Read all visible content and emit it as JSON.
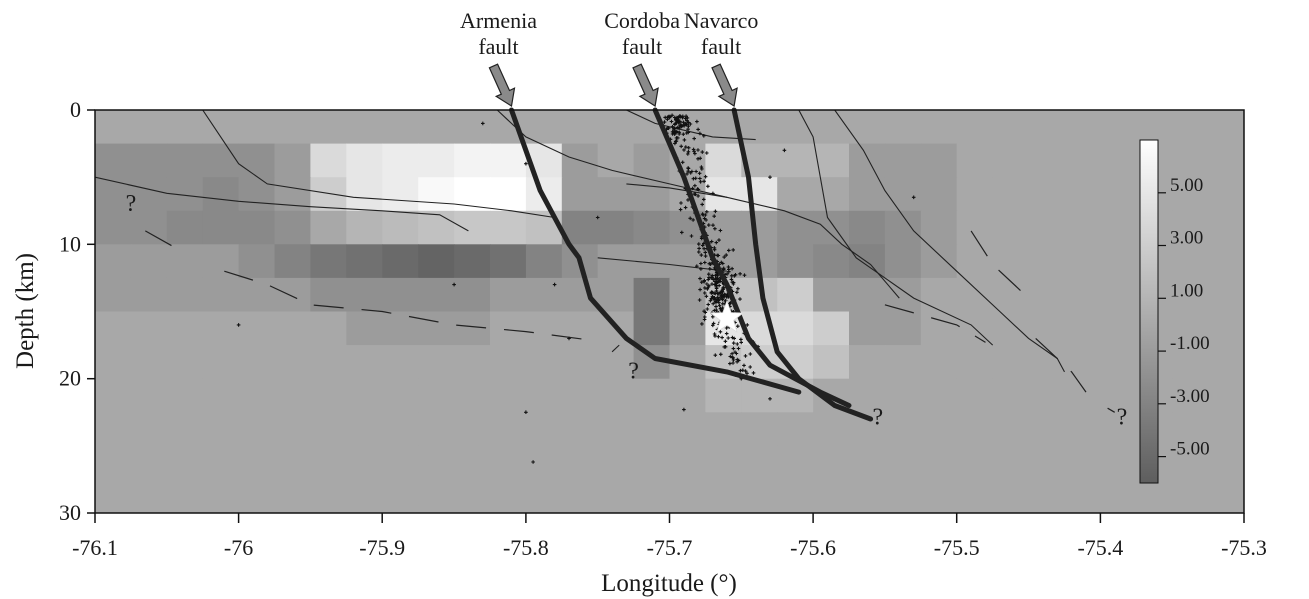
{
  "chart_data": {
    "type": "heatmap",
    "xlabel": "Longitude (°)",
    "ylabel": "Depth (km)",
    "xlim": [
      -76.1,
      -75.3
    ],
    "ylim": [
      0,
      30
    ],
    "x_ticks": [
      -76.1,
      -76,
      -75.9,
      -75.8,
      -75.7,
      -75.6,
      -75.5,
      -75.4,
      -75.3
    ],
    "x_tick_labels": [
      "-76.1",
      "-76",
      "-75.9",
      "-75.8",
      "-75.7",
      "-75.6",
      "-75.5",
      "-75.4",
      "-75.3"
    ],
    "y_ticks": [
      0,
      10,
      20,
      30
    ],
    "y_tick_labels": [
      "0",
      "10",
      "20",
      "30"
    ],
    "colorbar": {
      "min": -6,
      "max": 7,
      "tick_values": [
        5,
        3,
        1,
        -1,
        -3,
        -5
      ],
      "tick_labels": [
        "5.00",
        "3.00",
        "1.00",
        "-1.00",
        "-3.00",
        "-5.00"
      ],
      "color_low": "#5e5e5e",
      "color_high": "#ffffff"
    },
    "grid": {
      "x0": -76.1,
      "dx": 0.025,
      "z0": 0,
      "dz": 2.5,
      "rows": [
        [
          0,
          0,
          0,
          0,
          0,
          0,
          0,
          0,
          0,
          0,
          0,
          0,
          0,
          0,
          0,
          0,
          0,
          0,
          0,
          0,
          0,
          0,
          0,
          0,
          0,
          0,
          0,
          0,
          0,
          0,
          0,
          0
        ],
        [
          -2,
          -2,
          -2,
          -2,
          -2,
          -1,
          4,
          5,
          5.5,
          5.5,
          6,
          6,
          5,
          -1,
          0,
          -1,
          0,
          4,
          1,
          1,
          1,
          -1,
          -1,
          -1,
          0,
          0,
          0,
          0,
          0,
          0,
          0,
          0
        ],
        [
          -2,
          -2,
          -2,
          -2.5,
          -2,
          -1,
          3,
          5,
          5.5,
          6.5,
          7,
          7,
          5.5,
          -1,
          -1,
          -1,
          0,
          5,
          5,
          0,
          0,
          -1,
          -1,
          -1,
          0,
          0,
          0,
          0,
          0,
          0,
          0,
          0
        ],
        [
          -2,
          -2,
          -2.5,
          -2.5,
          -2.5,
          -2,
          0,
          1,
          1.5,
          2,
          2.5,
          2.5,
          2,
          -3,
          -3,
          -2.5,
          -2,
          -1,
          -1,
          -2,
          -2,
          -2.5,
          -2,
          -1,
          0,
          0,
          0,
          0,
          0,
          0,
          0,
          0
        ],
        [
          -1,
          -1,
          -1,
          -1,
          -2,
          -3,
          -4,
          -4.5,
          -5,
          -5.5,
          -5,
          -4.5,
          -3,
          -2,
          -1,
          -1,
          -1,
          -1,
          -1,
          -2,
          -2.5,
          -3,
          -2,
          -1,
          0,
          0,
          0,
          0,
          0,
          0,
          0,
          0
        ],
        [
          -1,
          -1,
          -1,
          -1,
          -1,
          -1,
          -2,
          -2,
          -2,
          -2,
          -2,
          -1,
          -1,
          -1,
          -1,
          -4,
          -1,
          2,
          2,
          3,
          -1,
          -1,
          -1,
          0,
          0,
          0,
          0,
          0,
          0,
          0,
          0,
          0
        ],
        [
          0,
          0,
          0,
          0,
          0,
          0,
          0,
          -1,
          -1,
          -1,
          -1,
          0,
          0,
          0,
          0,
          -4,
          -1,
          5,
          4,
          4,
          3,
          -1,
          -1,
          0,
          0,
          0,
          0,
          0,
          0,
          0,
          0,
          0
        ],
        [
          0,
          0,
          0,
          0,
          0,
          0,
          0,
          0,
          0,
          0,
          0,
          0,
          0,
          0,
          0,
          -2,
          0,
          2,
          3,
          3,
          2,
          0,
          0,
          0,
          0,
          0,
          0,
          0,
          0,
          0,
          0,
          0
        ],
        [
          0,
          0,
          0,
          0,
          0,
          0,
          0,
          0,
          0,
          0,
          0,
          0,
          0,
          0,
          0,
          0,
          0,
          1,
          1,
          1,
          0,
          0,
          0,
          0,
          0,
          0,
          0,
          0,
          0,
          0,
          0,
          0
        ],
        [
          0,
          0,
          0,
          0,
          0,
          0,
          0,
          0,
          0,
          0,
          0,
          0,
          0,
          0,
          0,
          0,
          0,
          0,
          0,
          0,
          0,
          0,
          0,
          0,
          0,
          0,
          0,
          0,
          0,
          0,
          0,
          0
        ],
        [
          0,
          0,
          0,
          0,
          0,
          0,
          0,
          0,
          0,
          0,
          0,
          0,
          0,
          0,
          0,
          0,
          0,
          0,
          0,
          0,
          0,
          0,
          0,
          0,
          0,
          0,
          0,
          0,
          0,
          0,
          0,
          0
        ],
        [
          0,
          0,
          0,
          0,
          0,
          0,
          0,
          0,
          0,
          0,
          0,
          0,
          0,
          0,
          0,
          0,
          0,
          0,
          0,
          0,
          0,
          0,
          0,
          0,
          0,
          0,
          0,
          0,
          0,
          0,
          0,
          0
        ]
      ]
    },
    "faults": [
      {
        "name": "Armenia fault",
        "label": [
          "Armenia",
          "fault"
        ],
        "points": [
          [
            -75.81,
            0
          ],
          [
            -75.79,
            6
          ],
          [
            -75.78,
            8
          ],
          [
            -75.77,
            10
          ],
          [
            -75.763,
            11
          ],
          [
            -75.755,
            14
          ],
          [
            -75.73,
            17
          ],
          [
            -75.71,
            18.5
          ],
          [
            -75.66,
            19.5
          ],
          [
            -75.61,
            21
          ]
        ]
      },
      {
        "name": "Cordoba fault",
        "label": [
          "Cordoba",
          "fault"
        ],
        "points": [
          [
            -75.71,
            0
          ],
          [
            -75.69,
            5
          ],
          [
            -75.68,
            8
          ],
          [
            -75.67,
            11
          ],
          [
            -75.66,
            13
          ],
          [
            -75.645,
            17
          ],
          [
            -75.63,
            19
          ],
          [
            -75.595,
            21
          ],
          [
            -75.575,
            22
          ]
        ]
      },
      {
        "name": "Navarco fault",
        "label": [
          "Navarco",
          "fault"
        ],
        "points": [
          [
            -75.655,
            0
          ],
          [
            -75.645,
            5
          ],
          [
            -75.64,
            10
          ],
          [
            -75.635,
            14
          ],
          [
            -75.625,
            18
          ],
          [
            -75.61,
            20
          ],
          [
            -75.585,
            22
          ],
          [
            -75.56,
            23
          ]
        ]
      }
    ],
    "structure_lines": [
      [
        [
          -76.025,
          0
        ],
        [
          -76.0,
          4
        ],
        [
          -75.98,
          5.5
        ],
        [
          -75.92,
          6.5
        ],
        [
          -75.85,
          7
        ],
        [
          -75.81,
          7.5
        ],
        [
          -75.78,
          8
        ]
      ],
      [
        [
          -75.82,
          0
        ],
        [
          -75.8,
          2
        ],
        [
          -75.77,
          3.5
        ],
        [
          -75.74,
          4.5
        ],
        [
          -75.7,
          5.5
        ],
        [
          -75.66,
          6.5
        ],
        [
          -75.62,
          7.5
        ],
        [
          -75.595,
          8.5
        ],
        [
          -75.58,
          10
        ],
        [
          -75.56,
          11.5
        ],
        [
          -75.54,
          14
        ]
      ],
      [
        [
          -76.1,
          5
        ],
        [
          -76.05,
          6.2
        ],
        [
          -76.0,
          6.8
        ],
        [
          -75.95,
          7.2
        ],
        [
          -75.9,
          7.5
        ],
        [
          -75.86,
          7.8
        ],
        [
          -75.84,
          9
        ]
      ],
      [
        [
          -75.73,
          0
        ],
        [
          -75.71,
          1
        ],
        [
          -75.69,
          1.5
        ],
        [
          -75.67,
          2
        ],
        [
          -75.64,
          2.2
        ]
      ],
      [
        [
          -75.73,
          5.5
        ],
        [
          -75.7,
          5.8
        ],
        [
          -75.66,
          6.5
        ]
      ],
      [
        [
          -75.75,
          11
        ],
        [
          -75.7,
          11.5
        ],
        [
          -75.66,
          12
        ]
      ],
      [
        [
          -75.735,
          17.5
        ],
        [
          -75.74,
          18
        ]
      ],
      [
        [
          -75.61,
          0
        ],
        [
          -75.6,
          2
        ],
        [
          -75.595,
          5
        ],
        [
          -75.59,
          8
        ],
        [
          -75.57,
          11
        ],
        [
          -75.53,
          14
        ],
        [
          -75.49,
          16
        ],
        [
          -75.475,
          17.5
        ]
      ],
      [
        [
          -75.585,
          0
        ],
        [
          -75.565,
          3
        ],
        [
          -75.55,
          6
        ],
        [
          -75.53,
          9
        ],
        [
          -75.5,
          12
        ],
        [
          -75.47,
          15
        ],
        [
          -75.45,
          17
        ],
        [
          -75.43,
          18.5
        ],
        [
          -75.425,
          19.5
        ]
      ]
    ],
    "dashed_lines": [
      [
        [
          -76.065,
          9
        ],
        [
          -76.04,
          10.5
        ]
      ],
      [
        [
          -76.01,
          12
        ],
        [
          -75.98,
          13
        ],
        [
          -75.95,
          14.5
        ],
        [
          -75.9,
          15
        ],
        [
          -75.85,
          16
        ],
        [
          -75.8,
          16.5
        ],
        [
          -75.75,
          17.2
        ]
      ],
      [
        [
          -75.49,
          9
        ],
        [
          -75.475,
          11.5
        ],
        [
          -75.45,
          14
        ]
      ],
      [
        [
          -75.55,
          14.5
        ],
        [
          -75.5,
          16
        ],
        [
          -75.48,
          17.3
        ]
      ],
      [
        [
          -75.445,
          17
        ],
        [
          -75.42,
          19.5
        ],
        [
          -75.41,
          21
        ]
      ],
      [
        [
          -75.395,
          22.2
        ],
        [
          -75.39,
          22.5
        ]
      ]
    ],
    "question_marks": [
      {
        "text": "?",
        "x": -76.075,
        "y": 7.5
      },
      {
        "text": "?",
        "x": -75.725,
        "y": 20
      },
      {
        "text": "?",
        "x": -75.555,
        "y": 23.4
      },
      {
        "text": "?",
        "x": -75.385,
        "y": 23.4
      }
    ],
    "mainshock": {
      "x": -75.66,
      "y": 15.5
    },
    "colors": {
      "background_cell": "#999999",
      "fault_line": "#222222",
      "axis": "#111111",
      "arrow_fill": "#8a8a8a"
    }
  }
}
